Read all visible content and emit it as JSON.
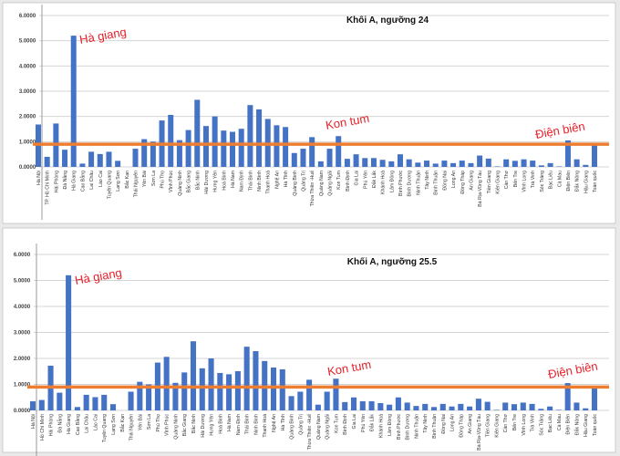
{
  "colors": {
    "bar": "#4472c4",
    "reference_line": "#ed7d31",
    "annotation": "#e8202a"
  },
  "chart_data": [
    {
      "type": "bar",
      "title": "Khối A, ngưỡng 24",
      "ylim": [
        0,
        6
      ],
      "yticks": [
        "0.0000",
        "1.0000",
        "2.0000",
        "3.0000",
        "4.0000",
        "5.0000",
        "6.0000"
      ],
      "grid": true,
      "reference_line": 0.9,
      "annotations": [
        "Hà giang",
        "Kon tum",
        "Điện biên"
      ],
      "categories": [
        "Hà Nội",
        "TP. Hồ Chí Minh",
        "Hải Phòng",
        "Đà Nẵng",
        "Hà Giang",
        "Cao Bằng",
        "Lai Châu",
        "Lào Cai",
        "Tuyên Quang",
        "Lạng Sơn",
        "Bắc Kạn",
        "Thái Nguyên",
        "Yên Bái",
        "Sơn La",
        "Phú Thọ",
        "Vĩnh Phúc",
        "Quảng Ninh",
        "Bắc Giang",
        "Bắc Ninh",
        "Hải Dương",
        "Hưng Yên",
        "Hoà Bình",
        "Hà Nam",
        "Nam Định",
        "Thái Bình",
        "Ninh Bình",
        "Thanh Hoá",
        "Nghệ An",
        "Hà Tĩnh",
        "Quảng Bình",
        "Quảng Trị",
        "Thừa Thiên -Huế",
        "Quảng Nam",
        "Quảng Ngãi",
        "Kon Tum",
        "Bình Định",
        "Gia Lai",
        "Phú Yên",
        "Đắk Lắk",
        "Khánh Hoà",
        "Lâm Đồng",
        "Bình Phước",
        "Bình Dương",
        "Ninh Thuận",
        "Tây Ninh",
        "Bình Thuận",
        "Đồng Nai",
        "Long An",
        "Đồng Tháp",
        "An Giang",
        "Bà Rịa-Vũng Tàu",
        "Tiền Giang",
        "Kiên Giang",
        "Cần Thơ",
        "Bến Tre",
        "Vĩnh Long",
        "Trà Vinh",
        "Sóc Trăng",
        "Bạc Liêu",
        "Cà Mau",
        "Điện Biên",
        "Đắk Nông",
        "Hậu Giang",
        "Toàn quốc"
      ],
      "values": [
        1.68,
        0.4,
        1.72,
        0.68,
        5.2,
        0.13,
        0.6,
        0.51,
        0.6,
        0.24,
        0,
        0.72,
        1.1,
        1.0,
        1.84,
        2.06,
        1.06,
        1.46,
        2.66,
        1.62,
        2.0,
        1.44,
        1.39,
        1.51,
        2.45,
        2.28,
        1.9,
        1.65,
        1.58,
        0.55,
        0.72,
        1.18,
        0.22,
        0.72,
        1.22,
        0.32,
        0.5,
        0.35,
        0.35,
        0.28,
        0.22,
        0.5,
        0.3,
        0.17,
        0.25,
        0.13,
        0.25,
        0.15,
        0.25,
        0.15,
        0.45,
        0.33,
        0.02,
        0.3,
        0.24,
        0.3,
        0.25,
        0.06,
        0.15,
        0.02,
        1.05,
        0.3,
        0.08,
        0.88
      ]
    },
    {
      "type": "bar",
      "title": "Khối A, ngưỡng 25.5",
      "ylim": [
        0,
        6
      ],
      "yticks": [
        "0.0000",
        "1.0000",
        "2.0000",
        "3.0000",
        "4.0000",
        "5.0000",
        "6.0000"
      ],
      "grid": true,
      "reference_line": 0.9,
      "annotations": [
        "Hà giang",
        "Kon tum",
        "Điện biên"
      ],
      "categories": [
        "Hà Nội",
        "Hồ Chí Minh",
        "Hải Phòng",
        "Đà Nẵng",
        "Hà Giang",
        "Cao Bằng",
        "Lai Châu",
        "Lào Cai",
        "Tuyên Quang",
        "Lạng Sơn",
        "Bắc Kạn",
        "Thái Nguyên",
        "Yên Bái",
        "Sơn La",
        "Phú Thọ",
        "Vĩnh Phúc",
        "Quảng Ninh",
        "Bắc Giang",
        "Bắc Ninh",
        "Hải Dương",
        "Hưng Yên",
        "Hoà Bình",
        "Hà Nam",
        "Nam Định",
        "Thái Bình",
        "Ninh Bình",
        "Thanh Hoá",
        "Nghệ An",
        "Hà Tĩnh",
        "Quảng Bình",
        "Quảng Trị",
        "Thừa Thiên -Huế",
        "Quảng Nam",
        "Quảng Ngãi",
        "Kon Tum",
        "Bình Định",
        "Gia Lai",
        "Phú Yên",
        "Đắk Lắk",
        "Khánh Hoà",
        "Lâm Đồng",
        "Bình Phước",
        "Bình Dương",
        "Ninh Thuận",
        "Tây Ninh",
        "Bình Thuận",
        "Đồng Nai",
        "Long An",
        "Đồng Tháp",
        "An Giang",
        "Bà Rịa-Vũng Tàu",
        "Tiền Giang",
        "Kiên Giang",
        "Cần Thơ",
        "Bến Tre",
        "Vĩnh Long",
        "Trà Vinh",
        "Sóc Trăng",
        "Bạc Liêu",
        "Cà Mau",
        "Điện Biên",
        "Đắk Nông",
        "Hậu Giang",
        "Toàn quốc"
      ],
      "values": [
        0.35,
        0.4,
        1.72,
        0.68,
        5.2,
        0.13,
        0.6,
        0.51,
        0.6,
        0.24,
        0,
        0.72,
        1.1,
        1.0,
        1.84,
        2.06,
        1.06,
        1.46,
        2.66,
        1.62,
        2.0,
        1.44,
        1.39,
        1.51,
        2.45,
        2.28,
        1.9,
        1.65,
        1.58,
        0.55,
        0.72,
        1.18,
        0.22,
        0.72,
        1.22,
        0.32,
        0.5,
        0.35,
        0.35,
        0.28,
        0.22,
        0.5,
        0.3,
        0.17,
        0.25,
        0.13,
        0.25,
        0.15,
        0.25,
        0.15,
        0.45,
        0.33,
        0.02,
        0.3,
        0.24,
        0.3,
        0.25,
        0.06,
        0.15,
        0.02,
        1.05,
        0.3,
        0.08,
        0.88
      ]
    }
  ]
}
